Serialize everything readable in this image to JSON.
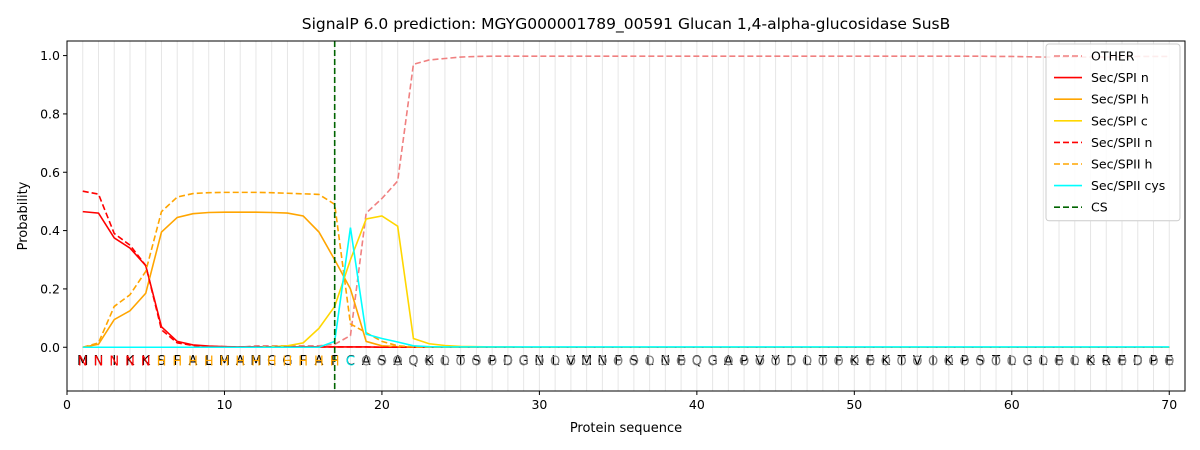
{
  "chart_data": {
    "type": "line",
    "title": "SignalP 6.0 prediction: MGYG000001789_00591 Glucan 1,4-alpha-glucosidase SusB",
    "xlabel": "Protein sequence",
    "ylabel": "Probability",
    "xlim": [
      0,
      71
    ],
    "ylim": [
      -0.15,
      1.05
    ],
    "x_ticks": [
      0,
      10,
      20,
      30,
      40,
      50,
      60,
      70
    ],
    "y_ticks": [
      0.0,
      0.2,
      0.4,
      0.6,
      0.8,
      1.0
    ],
    "x_tick_labels": [
      "0",
      "10",
      "20",
      "30",
      "40",
      "50",
      "60",
      "70"
    ],
    "y_tick_labels": [
      "0.0",
      "0.2",
      "0.4",
      "0.6",
      "0.8",
      "1.0"
    ],
    "grid": "vertical lines at every residue",
    "legend_position": "top-right",
    "sequence": [
      "M",
      "N",
      "I",
      "K",
      "K",
      "S",
      "F",
      "A",
      "L",
      "M",
      "A",
      "M",
      "C",
      "G",
      "F",
      "A",
      "F",
      "C",
      "A",
      "S",
      "A",
      "Q",
      "K",
      "L",
      "T",
      "S",
      "P",
      "D",
      "G",
      "N",
      "L",
      "V",
      "M",
      "N",
      "F",
      "S",
      "L",
      "N",
      "E",
      "Q",
      "G",
      "A",
      "P",
      "V",
      "Y",
      "D",
      "L",
      "T",
      "F",
      "K",
      "E",
      "K",
      "T",
      "V",
      "I",
      "K",
      "P",
      "S",
      "T",
      "L",
      "G",
      "L",
      "E",
      "L",
      "K",
      "R",
      "E",
      "D",
      "P",
      "E"
    ],
    "region_labels": [
      "N",
      "N",
      "N",
      "N",
      "N",
      "H",
      "H",
      "H",
      "H",
      "H",
      "H",
      "H",
      "H",
      "H",
      "H",
      "H",
      "H",
      "C",
      "O",
      "O",
      "O",
      "O",
      "O",
      "O",
      "O",
      "O",
      "O",
      "O",
      "O",
      "O",
      "O",
      "O",
      "O",
      "O",
      "O",
      "O",
      "O",
      "O",
      "O",
      "O",
      "O",
      "O",
      "O",
      "O",
      "O",
      "O",
      "O",
      "O",
      "O",
      "O",
      "O",
      "O",
      "O",
      "O",
      "O",
      "O",
      "O",
      "O",
      "O",
      "O",
      "O",
      "O",
      "O",
      "O",
      "O",
      "O",
      "O",
      "O",
      "O",
      "O"
    ],
    "region_colors": {
      "N": "#ff0000",
      "H": "#ffa500",
      "C": "#00e5e5",
      "O": "#808080"
    },
    "cleavage_site": 17,
    "series": [
      {
        "name": "OTHER",
        "color": "#f08080",
        "dash": "dashed",
        "values": [
          0.0,
          0.0,
          0.0,
          0.0,
          0.0,
          0.0,
          0.0,
          0.0,
          0.0,
          0.0,
          0.0,
          0.005,
          0.005,
          0.005,
          0.005,
          0.005,
          0.01,
          0.04,
          0.46,
          0.51,
          0.57,
          0.97,
          0.985,
          0.99,
          0.995,
          0.997,
          0.998,
          0.998,
          0.998,
          0.998,
          0.998,
          0.998,
          0.998,
          0.998,
          0.998,
          0.998,
          0.998,
          0.998,
          0.998,
          0.998,
          0.998,
          0.998,
          0.998,
          0.998,
          0.998,
          0.998,
          0.998,
          0.998,
          0.998,
          0.998,
          0.998,
          0.998,
          0.998,
          0.998,
          0.998,
          0.998,
          0.998,
          0.998,
          0.997,
          0.997,
          0.996,
          0.995,
          0.995,
          0.995,
          0.995,
          0.995,
          0.996,
          0.997,
          0.997,
          0.997
        ]
      },
      {
        "name": "Sec/SPI n",
        "color": "#ff0000",
        "dash": "solid",
        "values": [
          0.465,
          0.46,
          0.375,
          0.34,
          0.28,
          0.07,
          0.02,
          0.008,
          0.004,
          0.002,
          0.001,
          0.001,
          0.001,
          0.001,
          0.001,
          0.001,
          0.001,
          0.001,
          0.001,
          0.0,
          0.0,
          0.0,
          0.0,
          0.0,
          0.0,
          0.0,
          0.0,
          0.0,
          0.0,
          0.0,
          0.0,
          0.0,
          0.0,
          0.0,
          0.0,
          0.0,
          0.0,
          0.0,
          0.0,
          0.0,
          0.0,
          0.0,
          0.0,
          0.0,
          0.0,
          0.0,
          0.0,
          0.0,
          0.0,
          0.0,
          0.0,
          0.0,
          0.0,
          0.0,
          0.0,
          0.0,
          0.0,
          0.0,
          0.0,
          0.0,
          0.0,
          0.0,
          0.0,
          0.0,
          0.0,
          0.0,
          0.0,
          0.0,
          0.0,
          0.0
        ]
      },
      {
        "name": "Sec/SPI h",
        "color": "#ffa500",
        "dash": "solid",
        "values": [
          0.0,
          0.01,
          0.095,
          0.125,
          0.185,
          0.395,
          0.445,
          0.458,
          0.462,
          0.463,
          0.463,
          0.463,
          0.462,
          0.46,
          0.45,
          0.395,
          0.3,
          0.2,
          0.02,
          0.005,
          0.002,
          0.001,
          0.0,
          0.0,
          0.0,
          0.0,
          0.0,
          0.0,
          0.0,
          0.0,
          0.0,
          0.0,
          0.0,
          0.0,
          0.0,
          0.0,
          0.0,
          0.0,
          0.0,
          0.0,
          0.0,
          0.0,
          0.0,
          0.0,
          0.0,
          0.0,
          0.0,
          0.0,
          0.0,
          0.0,
          0.0,
          0.0,
          0.0,
          0.0,
          0.0,
          0.0,
          0.0,
          0.0,
          0.0,
          0.0,
          0.0,
          0.0,
          0.0,
          0.0,
          0.0,
          0.0,
          0.0,
          0.0,
          0.0,
          0.0
        ]
      },
      {
        "name": "Sec/SPI c",
        "color": "#ffd700",
        "dash": "solid",
        "values": [
          0.0,
          0.0,
          0.0,
          0.0,
          0.0,
          0.0,
          0.0,
          0.0,
          0.0,
          0.0,
          0.0,
          0.0,
          0.002,
          0.005,
          0.015,
          0.065,
          0.14,
          0.3,
          0.44,
          0.45,
          0.415,
          0.03,
          0.012,
          0.006,
          0.003,
          0.002,
          0.001,
          0.001,
          0.0,
          0.0,
          0.0,
          0.0,
          0.0,
          0.0,
          0.0,
          0.0,
          0.0,
          0.0,
          0.0,
          0.0,
          0.0,
          0.0,
          0.0,
          0.0,
          0.0,
          0.0,
          0.0,
          0.0,
          0.0,
          0.0,
          0.0,
          0.0,
          0.0,
          0.0,
          0.0,
          0.0,
          0.0,
          0.0,
          0.0,
          0.0,
          0.0,
          0.0,
          0.0,
          0.0,
          0.0,
          0.0,
          0.0,
          0.0,
          0.0,
          0.0
        ]
      },
      {
        "name": "Sec/SPII n",
        "color": "#ff0000",
        "dash": "dashed",
        "values": [
          0.535,
          0.525,
          0.39,
          0.35,
          0.28,
          0.06,
          0.015,
          0.006,
          0.003,
          0.002,
          0.001,
          0.001,
          0.001,
          0.001,
          0.001,
          0.001,
          0.001,
          0.001,
          0.001,
          0.0,
          0.0,
          0.0,
          0.0,
          0.0,
          0.0,
          0.0,
          0.0,
          0.0,
          0.0,
          0.0,
          0.0,
          0.0,
          0.0,
          0.0,
          0.0,
          0.0,
          0.0,
          0.0,
          0.0,
          0.0,
          0.0,
          0.0,
          0.0,
          0.0,
          0.0,
          0.0,
          0.0,
          0.0,
          0.0,
          0.0,
          0.0,
          0.0,
          0.0,
          0.0,
          0.0,
          0.0,
          0.0,
          0.0,
          0.0,
          0.0,
          0.0,
          0.0,
          0.0,
          0.0,
          0.0,
          0.0,
          0.0,
          0.0,
          0.0,
          0.0
        ]
      },
      {
        "name": "Sec/SPII h",
        "color": "#ffa500",
        "dash": "dashed",
        "values": [
          0.0,
          0.015,
          0.14,
          0.18,
          0.26,
          0.465,
          0.515,
          0.527,
          0.53,
          0.531,
          0.531,
          0.531,
          0.53,
          0.528,
          0.526,
          0.524,
          0.49,
          0.08,
          0.05,
          0.02,
          0.005,
          0.001,
          0.0,
          0.0,
          0.0,
          0.0,
          0.0,
          0.0,
          0.0,
          0.0,
          0.0,
          0.0,
          0.0,
          0.0,
          0.0,
          0.0,
          0.0,
          0.0,
          0.0,
          0.0,
          0.0,
          0.0,
          0.0,
          0.0,
          0.0,
          0.0,
          0.0,
          0.0,
          0.0,
          0.0,
          0.0,
          0.0,
          0.0,
          0.0,
          0.0,
          0.0,
          0.0,
          0.0,
          0.0,
          0.0,
          0.0,
          0.0,
          0.0,
          0.0,
          0.0,
          0.0,
          0.0,
          0.0,
          0.0,
          0.0
        ]
      },
      {
        "name": "Sec/SPII cys",
        "color": "#00ffff",
        "dash": "solid",
        "values": [
          0.0,
          0.0,
          0.0,
          0.0,
          0.0,
          0.0,
          0.0,
          0.0,
          0.0,
          0.0,
          0.0,
          0.0,
          0.0,
          0.0,
          0.0,
          0.0,
          0.02,
          0.41,
          0.045,
          0.03,
          0.018,
          0.005,
          0.002,
          0.001,
          0.001,
          0.001,
          0.001,
          0.001,
          0.001,
          0.001,
          0.001,
          0.001,
          0.001,
          0.001,
          0.001,
          0.001,
          0.001,
          0.001,
          0.001,
          0.001,
          0.001,
          0.001,
          0.001,
          0.001,
          0.001,
          0.001,
          0.001,
          0.001,
          0.001,
          0.001,
          0.001,
          0.001,
          0.001,
          0.001,
          0.001,
          0.001,
          0.001,
          0.001,
          0.001,
          0.001,
          0.001,
          0.001,
          0.001,
          0.001,
          0.001,
          0.001,
          0.001,
          0.001,
          0.001,
          0.001
        ]
      }
    ],
    "cs_legend": {
      "name": "CS",
      "color": "#006400",
      "dash": "dashed"
    }
  }
}
